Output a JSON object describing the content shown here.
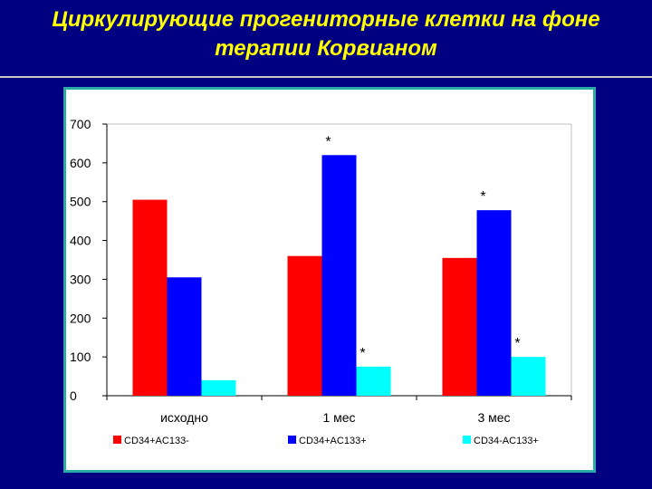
{
  "slide": {
    "title_line1": "Циркулирующие прогениторные клетки на фоне",
    "title_line2": "терапии Корвианом"
  },
  "colors": {
    "background": "#000080",
    "title": "#ffff00",
    "panel_border": "#2aa9a9"
  },
  "chart_data": {
    "type": "bar",
    "title": "",
    "xlabel": "",
    "ylabel": "",
    "categories": [
      "исходно",
      "1 мес",
      "3 мес"
    ],
    "ylim": [
      0,
      700
    ],
    "yticks": [
      0,
      100,
      200,
      300,
      400,
      500,
      600,
      700
    ],
    "grid": false,
    "legend_position": "bottom",
    "series": [
      {
        "name": "CD34+AC133-",
        "color": "#ff0000",
        "values": [
          505,
          360,
          355
        ]
      },
      {
        "name": "CD34+AC133+",
        "color": "#0000ff",
        "values": [
          305,
          620,
          478
        ]
      },
      {
        "name": "CD34-AC133+",
        "color": "#00ffff",
        "values": [
          40,
          75,
          100
        ]
      }
    ],
    "annotations": [
      {
        "text": "*",
        "category_index": 1,
        "series_index": 1
      },
      {
        "text": "*",
        "category_index": 1,
        "series_index": 2
      },
      {
        "text": "*",
        "category_index": 2,
        "series_index": 1
      },
      {
        "text": "*",
        "category_index": 2,
        "series_index": 2
      }
    ]
  }
}
